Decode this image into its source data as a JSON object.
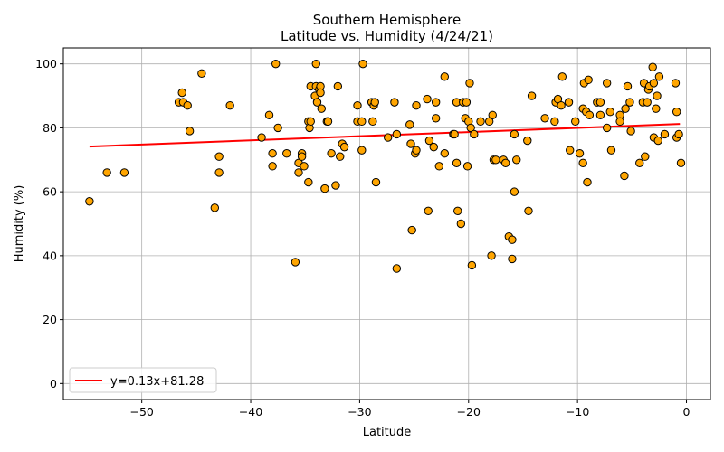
{
  "chart_data": {
    "type": "scatter",
    "title_line1": "Southern Hemisphere",
    "title_line2": "Latitude vs. Humidity (4/24/21)",
    "xlabel": "Latitude",
    "ylabel": "Humidity (%)",
    "xlim": [
      -57.2,
      2.2
    ],
    "ylim": [
      -5,
      105
    ],
    "xticks": [
      -50,
      -40,
      -30,
      -20,
      -10,
      0
    ],
    "xtick_labels": [
      "−50",
      "−40",
      "−30",
      "−20",
      "−10",
      "0"
    ],
    "yticks": [
      0,
      20,
      40,
      60,
      80,
      100
    ],
    "ytick_labels": [
      "0",
      "20",
      "40",
      "60",
      "80",
      "100"
    ],
    "grid": true,
    "marker_color": "#ffa500",
    "marker_edge": "#000000",
    "line_color": "#ff0000",
    "regression": {
      "slope": 0.13,
      "intercept": 81.28,
      "x_range": [
        -54.8,
        -0.6
      ]
    },
    "legend": {
      "label": "y=0.13x+81.28",
      "position": "lower-left"
    },
    "points": [
      [
        -54.8,
        57
      ],
      [
        -53.2,
        66
      ],
      [
        -51.6,
        66
      ],
      [
        -46.6,
        88
      ],
      [
        -46.3,
        91
      ],
      [
        -46.2,
        88
      ],
      [
        -45.8,
        87
      ],
      [
        -45.6,
        79
      ],
      [
        -44.5,
        97
      ],
      [
        -43.3,
        55
      ],
      [
        -42.9,
        71
      ],
      [
        -42.9,
        66
      ],
      [
        -41.9,
        87
      ],
      [
        -39.0,
        77
      ],
      [
        -38.3,
        84
      ],
      [
        -38.0,
        72
      ],
      [
        -38.0,
        68
      ],
      [
        -37.7,
        100
      ],
      [
        -37.5,
        80
      ],
      [
        -36.7,
        72
      ],
      [
        -35.9,
        38
      ],
      [
        -35.6,
        69
      ],
      [
        -35.6,
        66
      ],
      [
        -35.3,
        72
      ],
      [
        -35.3,
        71
      ],
      [
        -35.1,
        68
      ],
      [
        -34.7,
        82
      ],
      [
        -34.6,
        80
      ],
      [
        -34.5,
        93
      ],
      [
        -34.5,
        82
      ],
      [
        -34.7,
        63
      ],
      [
        -34.1,
        90
      ],
      [
        -34.0,
        93
      ],
      [
        -34.0,
        100
      ],
      [
        -33.9,
        88
      ],
      [
        -33.7,
        92
      ],
      [
        -33.6,
        93
      ],
      [
        -33.6,
        91
      ],
      [
        -33.5,
        86
      ],
      [
        -33.2,
        61
      ],
      [
        -33.0,
        82
      ],
      [
        -32.9,
        82
      ],
      [
        -32.6,
        72
      ],
      [
        -32.2,
        62
      ],
      [
        -32.0,
        93
      ],
      [
        -31.8,
        71
      ],
      [
        -31.6,
        75
      ],
      [
        -31.4,
        74
      ],
      [
        -30.2,
        82
      ],
      [
        -30.2,
        87
      ],
      [
        -29.8,
        82
      ],
      [
        -29.8,
        73
      ],
      [
        -29.7,
        100
      ],
      [
        -28.9,
        88
      ],
      [
        -28.8,
        82
      ],
      [
        -28.7,
        87
      ],
      [
        -28.6,
        88
      ],
      [
        -28.5,
        63
      ],
      [
        -27.4,
        77
      ],
      [
        -26.8,
        88
      ],
      [
        -26.6,
        78
      ],
      [
        -26.6,
        36
      ],
      [
        -25.4,
        81
      ],
      [
        -25.3,
        75
      ],
      [
        -25.2,
        48
      ],
      [
        -24.9,
        72
      ],
      [
        -24.8,
        73
      ],
      [
        -24.8,
        87
      ],
      [
        -23.8,
        89
      ],
      [
        -23.7,
        54
      ],
      [
        -23.6,
        76
      ],
      [
        -23.2,
        74
      ],
      [
        -23.0,
        83
      ],
      [
        -23.0,
        88
      ],
      [
        -22.7,
        68
      ],
      [
        -22.2,
        96
      ],
      [
        -22.2,
        72
      ],
      [
        -21.4,
        78
      ],
      [
        -21.3,
        78
      ],
      [
        -21.1,
        88
      ],
      [
        -21.1,
        69
      ],
      [
        -21.0,
        54
      ],
      [
        -20.7,
        50
      ],
      [
        -20.5,
        88
      ],
      [
        -20.3,
        83
      ],
      [
        -20.2,
        88
      ],
      [
        -20.1,
        68
      ],
      [
        -20.0,
        82
      ],
      [
        -19.9,
        94
      ],
      [
        -19.8,
        80
      ],
      [
        -19.7,
        37
      ],
      [
        -19.5,
        78
      ],
      [
        -18.9,
        82
      ],
      [
        -18.1,
        82
      ],
      [
        -17.9,
        40
      ],
      [
        -17.8,
        84
      ],
      [
        -17.7,
        70
      ],
      [
        -17.5,
        70
      ],
      [
        -16.8,
        70
      ],
      [
        -16.6,
        69
      ],
      [
        -16.3,
        46
      ],
      [
        -16.0,
        39
      ],
      [
        -16.0,
        45
      ],
      [
        -15.8,
        78
      ],
      [
        -15.8,
        60
      ],
      [
        -15.6,
        70
      ],
      [
        -14.6,
        76
      ],
      [
        -14.5,
        54
      ],
      [
        -14.2,
        90
      ],
      [
        -13.0,
        83
      ],
      [
        -12.1,
        82
      ],
      [
        -12.0,
        88
      ],
      [
        -11.8,
        89
      ],
      [
        -11.5,
        87
      ],
      [
        -11.4,
        96
      ],
      [
        -10.8,
        88
      ],
      [
        -10.7,
        73
      ],
      [
        -10.2,
        82
      ],
      [
        -9.8,
        72
      ],
      [
        -9.5,
        69
      ],
      [
        -9.5,
        86
      ],
      [
        -9.4,
        94
      ],
      [
        -9.2,
        85
      ],
      [
        -9.1,
        63
      ],
      [
        -9.0,
        95
      ],
      [
        -8.9,
        84
      ],
      [
        -8.2,
        88
      ],
      [
        -7.9,
        84
      ],
      [
        -7.9,
        88
      ],
      [
        -7.3,
        94
      ],
      [
        -7.3,
        80
      ],
      [
        -7.0,
        85
      ],
      [
        -6.9,
        73
      ],
      [
        -6.1,
        84
      ],
      [
        -6.1,
        82
      ],
      [
        -5.7,
        65
      ],
      [
        -5.6,
        86
      ],
      [
        -5.4,
        93
      ],
      [
        -5.2,
        88
      ],
      [
        -5.1,
        79
      ],
      [
        -4.3,
        69
      ],
      [
        -4.0,
        88
      ],
      [
        -3.9,
        94
      ],
      [
        -3.8,
        71
      ],
      [
        -3.6,
        88
      ],
      [
        -3.5,
        92
      ],
      [
        -3.4,
        93
      ],
      [
        -3.1,
        99
      ],
      [
        -3.0,
        94
      ],
      [
        -3.0,
        77
      ],
      [
        -2.8,
        86
      ],
      [
        -2.7,
        90
      ],
      [
        -2.6,
        76
      ],
      [
        -2.5,
        96
      ],
      [
        -2.0,
        78
      ],
      [
        -1.0,
        94
      ],
      [
        -0.9,
        85
      ],
      [
        -0.9,
        77
      ],
      [
        -0.7,
        78
      ],
      [
        -0.5,
        69
      ]
    ]
  }
}
